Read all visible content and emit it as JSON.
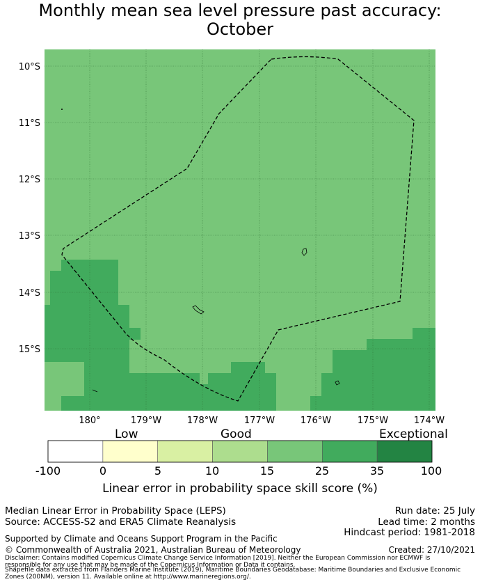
{
  "title": {
    "line1": "Monthly mean sea level pressure past accuracy:",
    "line2": "October"
  },
  "map": {
    "lat_labels": [
      "10°S",
      "11°S",
      "12°S",
      "13°S",
      "14°S",
      "15°S"
    ],
    "lon_labels": [
      "180°",
      "179°W",
      "178°W",
      "177°W",
      "176°W",
      "175°W",
      "174°W"
    ],
    "colors": {
      "class_15_25": "#78c679",
      "class_25_35": "#41ab5d",
      "grid": "#2f6f34",
      "boundary": "#000000"
    }
  },
  "colorbar": {
    "category_labels": [
      "Low",
      "Good",
      "Exceptional"
    ],
    "ticks": [
      "-100",
      "0",
      "5",
      "10",
      "15",
      "25",
      "35",
      "100"
    ],
    "colors": [
      "#ffffff",
      "#ffffcc",
      "#d9f0a3",
      "#addd8e",
      "#78c679",
      "#41ab5d",
      "#238443"
    ],
    "title": "Linear error in probability space skill score (%)"
  },
  "info": {
    "line1": "Median Linear Error in Probability Space (LEPS)",
    "line2": "Source: ACCESS-S2 and ERA5 Climate Reanalysis",
    "run_date": "Run date: 25 July",
    "lead_time": "Lead time: 2 months",
    "hindcast": "Hindcast period: 1981-2018",
    "supported": "Supported by Climate and Oceans Support Program in the Pacific",
    "copyright": "© Commonwealth of Australia 2021, Australian Bureau of Meteorology",
    "created": "Created: 27/10/2021",
    "disclaimer1": "Disclaimer: Contains modified Copernicus Climate Change Service Information [2019]. Neither the European Commission nor ECMWF is",
    "disclaimer2": "responsible for any use that may be made of the Copernicus Information or Data it contains.",
    "disclaimer3": "Shapefile data extracted from Flanders Marine Institute (2019), Maritime Boundaries Geodatabase: Maritime Boundaries and Exclusive Economic",
    "disclaimer4": "Zones (200NM), version 11. Available online at http://www.marineregions.org/."
  }
}
